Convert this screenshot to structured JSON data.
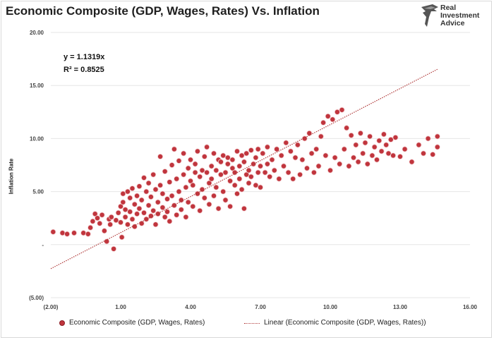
{
  "header": {
    "title": "Economic Composite (GDP, Wages, Rates) Vs. Inflation"
  },
  "brand": {
    "line1": "Real",
    "line2": "Investment",
    "line3": "Advice"
  },
  "equation": {
    "formula": "y = 1.1319x",
    "r_squared": "R² = 0.8525"
  },
  "chart_data": {
    "type": "scatter",
    "title": "Economic Composite (GDP, Wages, Rates) Vs. Inflation",
    "xlabel": "",
    "ylabel": "Inflation Rate",
    "xlim": [
      -2,
      16
    ],
    "ylim": [
      -5,
      20
    ],
    "x_ticks": [
      "(2.00)",
      "1.00",
      "4.00",
      "7.00",
      "10.00",
      "13.00",
      "16.00"
    ],
    "x_tick_values": [
      -2,
      1,
      4,
      7,
      10,
      13,
      16
    ],
    "y_ticks": [
      "20.00",
      "15.00",
      "10.00",
      "5.00",
      "-",
      "(5.00)"
    ],
    "y_tick_values": [
      20,
      15,
      10,
      5,
      0,
      -5
    ],
    "grid": true,
    "legend_position": "bottom",
    "colors": {
      "points": "#c0353d",
      "points_edge": "#8c1f26",
      "trendline": "#b03a3a",
      "grid": "#e6e6e6"
    },
    "trendline": {
      "name": "Linear (Economic Composite (GDP, Wages, Rates))",
      "slope": 1.1319,
      "x_range": [
        -2,
        14.6
      ]
    },
    "series": [
      {
        "name": "Economic Composite (GDP, Wages, Rates)",
        "points": [
          [
            -1.9,
            1.2
          ],
          [
            -1.5,
            1.1
          ],
          [
            -1.3,
            1.0
          ],
          [
            -1.0,
            1.1
          ],
          [
            -0.6,
            1.1
          ],
          [
            -0.3,
            1.6
          ],
          [
            -0.2,
            2.2
          ],
          [
            -0.1,
            2.9
          ],
          [
            0.0,
            2.5
          ],
          [
            0.1,
            2.0
          ],
          [
            0.2,
            2.8
          ],
          [
            0.3,
            1.3
          ],
          [
            0.4,
            0.3
          ],
          [
            0.5,
            2.4
          ],
          [
            0.6,
            2.6
          ],
          [
            0.7,
            -0.4
          ],
          [
            0.8,
            2.3
          ],
          [
            0.9,
            3.0
          ],
          [
            1.0,
            2.1
          ],
          [
            1.0,
            3.6
          ],
          [
            1.1,
            4.0
          ],
          [
            1.1,
            4.8
          ],
          [
            1.2,
            3.3
          ],
          [
            1.2,
            2.6
          ],
          [
            1.3,
            5.0
          ],
          [
            1.3,
            1.9
          ],
          [
            1.4,
            4.4
          ],
          [
            1.4,
            3.1
          ],
          [
            1.5,
            5.3
          ],
          [
            1.5,
            2.4
          ],
          [
            1.6,
            3.8
          ],
          [
            1.6,
            1.7
          ],
          [
            1.7,
            4.6
          ],
          [
            1.7,
            2.9
          ],
          [
            1.8,
            5.5
          ],
          [
            1.8,
            3.4
          ],
          [
            1.9,
            2.0
          ],
          [
            1.9,
            4.2
          ],
          [
            2.0,
            6.3
          ],
          [
            2.0,
            3.0
          ],
          [
            2.1,
            5.0
          ],
          [
            2.1,
            2.4
          ],
          [
            2.2,
            3.7
          ],
          [
            2.2,
            5.8
          ],
          [
            2.3,
            4.5
          ],
          [
            2.3,
            2.7
          ],
          [
            2.4,
            3.2
          ],
          [
            2.4,
            6.6
          ],
          [
            2.5,
            5.2
          ],
          [
            2.5,
            1.9
          ],
          [
            2.6,
            4.0
          ],
          [
            2.6,
            2.9
          ],
          [
            2.7,
            5.6
          ],
          [
            2.7,
            8.3
          ],
          [
            2.8,
            3.5
          ],
          [
            2.8,
            4.8
          ],
          [
            2.9,
            2.6
          ],
          [
            2.9,
            6.9
          ],
          [
            3.0,
            4.3
          ],
          [
            3.0,
            3.1
          ],
          [
            3.1,
            5.9
          ],
          [
            3.1,
            2.2
          ],
          [
            3.2,
            7.5
          ],
          [
            3.2,
            4.6
          ],
          [
            3.3,
            3.7
          ],
          [
            3.3,
            9.0
          ],
          [
            3.4,
            6.2
          ],
          [
            3.4,
            2.8
          ],
          [
            3.5,
            5.0
          ],
          [
            3.5,
            7.9
          ],
          [
            3.6,
            4.2
          ],
          [
            3.6,
            3.3
          ],
          [
            3.7,
            6.6
          ],
          [
            3.7,
            8.6
          ],
          [
            3.8,
            5.4
          ],
          [
            3.8,
            2.6
          ],
          [
            3.9,
            7.2
          ],
          [
            3.9,
            4.0
          ],
          [
            4.0,
            6.0
          ],
          [
            4.0,
            8.0
          ],
          [
            4.1,
            3.6
          ],
          [
            4.1,
            5.6
          ],
          [
            4.2,
            7.6
          ],
          [
            4.2,
            6.8
          ],
          [
            4.3,
            4.8
          ],
          [
            4.3,
            8.8
          ],
          [
            4.4,
            6.4
          ],
          [
            4.4,
            3.2
          ],
          [
            4.5,
            7.0
          ],
          [
            4.5,
            5.2
          ],
          [
            4.6,
            8.3
          ],
          [
            4.6,
            4.4
          ],
          [
            4.7,
            6.8
          ],
          [
            4.7,
            9.2
          ],
          [
            4.8,
            5.8
          ],
          [
            4.8,
            3.8
          ],
          [
            4.9,
            7.4
          ],
          [
            4.9,
            6.2
          ],
          [
            5.0,
            8.6
          ],
          [
            5.0,
            4.6
          ],
          [
            5.1,
            7.0
          ],
          [
            5.1,
            5.4
          ],
          [
            5.2,
            8.0
          ],
          [
            5.2,
            3.4
          ],
          [
            5.3,
            6.6
          ],
          [
            5.3,
            7.8
          ],
          [
            5.4,
            5.0
          ],
          [
            5.4,
            8.4
          ],
          [
            5.5,
            6.8
          ],
          [
            5.5,
            4.2
          ],
          [
            5.6,
            7.6
          ],
          [
            5.6,
            8.2
          ],
          [
            5.7,
            6.0
          ],
          [
            5.7,
            3.6
          ],
          [
            5.8,
            7.2
          ],
          [
            5.8,
            8.0
          ],
          [
            5.9,
            5.6
          ],
          [
            5.9,
            6.8
          ],
          [
            6.0,
            8.8
          ],
          [
            6.0,
            4.8
          ],
          [
            6.1,
            7.4
          ],
          [
            6.1,
            6.2
          ],
          [
            6.2,
            8.4
          ],
          [
            6.2,
            5.2
          ],
          [
            6.3,
            7.8
          ],
          [
            6.3,
            3.4
          ],
          [
            6.4,
            6.6
          ],
          [
            6.4,
            8.6
          ],
          [
            6.5,
            7.0
          ],
          [
            6.5,
            5.8
          ],
          [
            6.6,
            8.9
          ],
          [
            6.6,
            6.4
          ],
          [
            6.7,
            7.6
          ],
          [
            6.8,
            5.6
          ],
          [
            6.8,
            8.2
          ],
          [
            6.9,
            9.0
          ],
          [
            6.9,
            6.8
          ],
          [
            7.0,
            7.4
          ],
          [
            7.0,
            5.4
          ],
          [
            7.1,
            8.6
          ],
          [
            7.2,
            6.8
          ],
          [
            7.3,
            7.6
          ],
          [
            7.3,
            9.2
          ],
          [
            7.4,
            6.4
          ],
          [
            7.5,
            8.0
          ],
          [
            7.6,
            7.0
          ],
          [
            7.7,
            9.0
          ],
          [
            7.8,
            6.2
          ],
          [
            7.9,
            8.4
          ],
          [
            8.0,
            7.4
          ],
          [
            8.1,
            9.6
          ],
          [
            8.2,
            6.8
          ],
          [
            8.3,
            8.8
          ],
          [
            8.4,
            6.2
          ],
          [
            8.5,
            8.2
          ],
          [
            8.6,
            9.4
          ],
          [
            8.7,
            6.6
          ],
          [
            8.8,
            8.0
          ],
          [
            8.9,
            10.0
          ],
          [
            9.0,
            7.2
          ],
          [
            9.1,
            10.5
          ],
          [
            9.2,
            8.6
          ],
          [
            9.3,
            6.8
          ],
          [
            9.4,
            9.0
          ],
          [
            9.5,
            7.4
          ],
          [
            9.6,
            10.2
          ],
          [
            9.7,
            11.5
          ],
          [
            9.8,
            8.4
          ],
          [
            9.9,
            12.1
          ],
          [
            10.0,
            7.0
          ],
          [
            10.1,
            11.8
          ],
          [
            10.2,
            8.2
          ],
          [
            10.3,
            12.5
          ],
          [
            10.4,
            7.6
          ],
          [
            10.5,
            12.7
          ],
          [
            10.6,
            9.0
          ],
          [
            10.7,
            11.0
          ],
          [
            10.8,
            7.4
          ],
          [
            10.9,
            10.3
          ],
          [
            11.0,
            8.2
          ],
          [
            11.1,
            9.4
          ],
          [
            11.2,
            7.8
          ],
          [
            11.3,
            10.5
          ],
          [
            11.4,
            8.6
          ],
          [
            11.5,
            9.6
          ],
          [
            11.6,
            7.6
          ],
          [
            11.7,
            10.2
          ],
          [
            11.8,
            8.4
          ],
          [
            11.9,
            9.2
          ],
          [
            12.0,
            8.0
          ],
          [
            12.1,
            9.8
          ],
          [
            12.2,
            8.8
          ],
          [
            12.3,
            10.4
          ],
          [
            12.4,
            9.4
          ],
          [
            12.5,
            8.6
          ],
          [
            12.6,
            9.9
          ],
          [
            12.7,
            8.4
          ],
          [
            12.8,
            10.1
          ],
          [
            13.0,
            8.3
          ],
          [
            13.2,
            9.0
          ],
          [
            13.5,
            7.8
          ],
          [
            13.8,
            9.4
          ],
          [
            14.0,
            8.6
          ],
          [
            14.2,
            10.0
          ],
          [
            14.4,
            8.5
          ],
          [
            14.6,
            10.2
          ],
          [
            14.6,
            9.2
          ],
          [
            -0.4,
            1.0
          ],
          [
            0.55,
            1.9
          ],
          [
            1.05,
            0.7
          ]
        ]
      }
    ]
  },
  "legend": {
    "items": [
      {
        "label": "Economic Composite (GDP, Wages, Rates)"
      },
      {
        "label": "Linear (Economic Composite (GDP, Wages, Rates))"
      }
    ]
  }
}
